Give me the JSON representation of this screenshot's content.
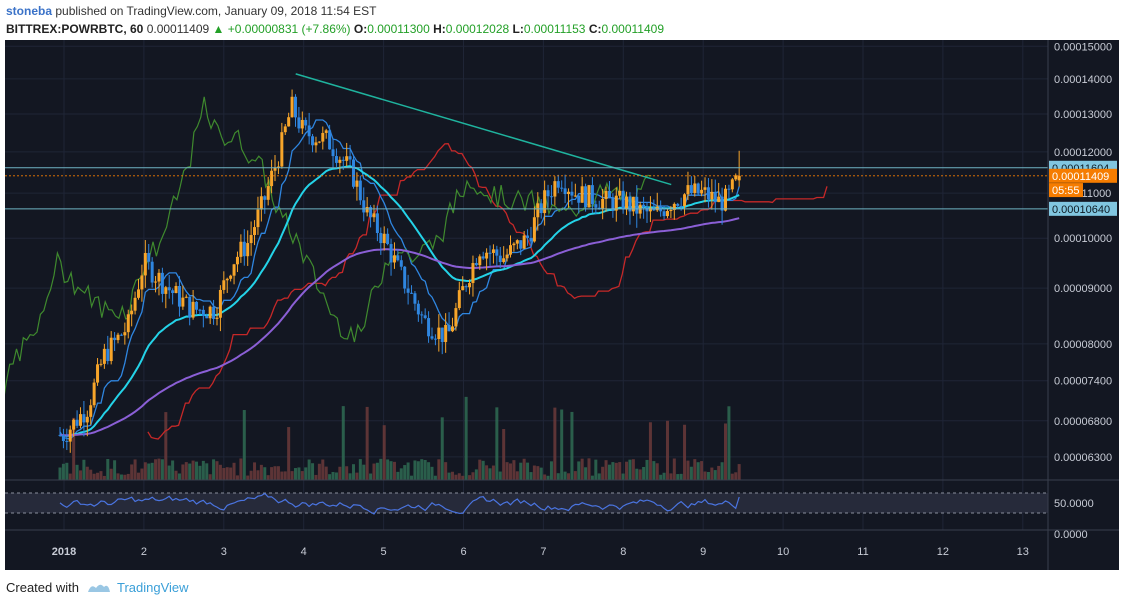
{
  "header": {
    "author": "stoneba",
    "published_text": "published on TradingView.com, January 09, 2018 11:54 EST",
    "symbol": "BITTREX:POWRBTC, 60",
    "last": "0.00011409",
    "change": "+0.00000831 (+7.86%)",
    "o_label": "O:",
    "o": "0.00011300",
    "h_label": "H:",
    "h": "0.00012028",
    "l_label": "L:",
    "l": "0.00011153",
    "c_label": "C:",
    "c": "0.00011409"
  },
  "footer": {
    "created_with": "Created with",
    "brand": "TradingView"
  },
  "colors": {
    "background": "#131722",
    "up": "#f7a52a",
    "down": "#2f86e0",
    "ma_fast": "#24d3e8",
    "ma_slow": "#8b5fd6",
    "lagging": "#3f8a2e",
    "kijun": "#c62828",
    "trendline": "#1fb39e",
    "rsi": "#4a74e0",
    "price_label_blue": "#81c6e0",
    "price_label_orange": "#f57c00"
  },
  "chart_data": [
    {
      "type": "candlestick",
      "title": "BITTREX:POWRBTC, 60",
      "x_ticks": [
        "2018",
        "2",
        "3",
        "4",
        "5",
        "6",
        "7",
        "8",
        "9",
        "10",
        "11",
        "12",
        "13"
      ],
      "x_range": [
        1,
        13.4
      ],
      "y_ticks": [
        "0.00015000",
        "0.00014000",
        "0.00013000",
        "0.00012000",
        "0.00011000",
        "0.00010000",
        "0.00009000",
        "0.00008000",
        "0.00007400",
        "0.00006800",
        "0.00006300"
      ],
      "y_range": [
        6e-05,
        0.000152
      ],
      "y_scale": "log",
      "price_labels": [
        {
          "text": "0.00011604",
          "value": 0.00011604,
          "style": "blue"
        },
        {
          "text": "0.00011409",
          "value": 0.00011409,
          "style": "orange"
        },
        {
          "text": "05:55",
          "value": 0.0001107,
          "style": "orange"
        },
        {
          "text": "0.00010640",
          "value": 0.0001064,
          "style": "blue"
        }
      ],
      "horizontal_lines": [
        0.00011604,
        0.0001064
      ],
      "trendline": {
        "from": [
          3.9,
          0.0001415
        ],
        "to": [
          8.6,
          0.000112
        ]
      },
      "anchor_points": [
        [
          1.0,
          6.6e-05
        ],
        [
          1.3,
          7e-05
        ],
        [
          1.5,
          7.8e-05
        ],
        [
          1.8,
          8.3e-05
        ],
        [
          2.0,
          9.5e-05
        ],
        [
          2.3,
          9e-05
        ],
        [
          2.6,
          8.6e-05
        ],
        [
          2.9,
          8.6e-05
        ],
        [
          3.1,
          9.5e-05
        ],
        [
          3.3,
          9.9e-05
        ],
        [
          3.5,
          0.000108
        ],
        [
          3.7,
          0.00012
        ],
        [
          3.85,
          0.000132
        ],
        [
          4.0,
          0.000125
        ],
        [
          4.3,
          0.000123
        ],
        [
          4.6,
          0.000115
        ],
        [
          4.8,
          0.000105
        ],
        [
          5.0,
          0.0001
        ],
        [
          5.2,
          9.3e-05
        ],
        [
          5.5,
          8.4e-05
        ],
        [
          5.8,
          8.1e-05
        ],
        [
          6.0,
          9e-05
        ],
        [
          6.2,
          9.8e-05
        ],
        [
          6.5,
          9.6e-05
        ],
        [
          6.8,
          0.0001
        ],
        [
          7.0,
          0.000108
        ],
        [
          7.2,
          0.000114
        ],
        [
          7.4,
          0.00011
        ],
        [
          7.6,
          0.000109
        ],
        [
          7.8,
          0.000108
        ],
        [
          8.0,
          0.000108
        ],
        [
          8.2,
          0.000106
        ],
        [
          8.4,
          0.000105
        ],
        [
          8.6,
          0.000108
        ],
        [
          8.8,
          0.00011
        ],
        [
          9.0,
          0.00011
        ],
        [
          9.2,
          0.000108
        ],
        [
          9.3,
          0.0001085
        ],
        [
          9.45,
          0.0001141
        ]
      ]
    },
    {
      "type": "bar",
      "title": "Volume",
      "note": "volume histogram along price pane bottom (unlabeled)"
    },
    {
      "type": "line",
      "title": "RSI",
      "y_ticks": [
        "50.0000",
        "0.0000"
      ],
      "bands": [
        70,
        30
      ],
      "last": 62
    }
  ]
}
